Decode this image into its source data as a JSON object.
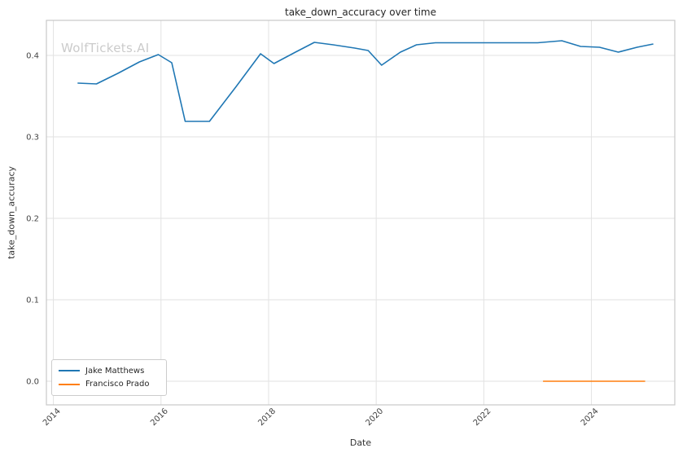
{
  "watermark": "WolfTickets.AI",
  "chart_data": {
    "type": "line",
    "title": "take_down_accuracy over time",
    "xlabel": "Date",
    "ylabel": "take_down_accuracy",
    "xlim": [
      2013.87,
      2025.55
    ],
    "ylim": [
      -0.029,
      0.443
    ],
    "grid": true,
    "legend_position": "lower left",
    "xticks": {
      "values": [
        2014,
        2016,
        2018,
        2020,
        2022,
        2024
      ],
      "labels": [
        "2014",
        "2016",
        "2018",
        "2020",
        "2022",
        "2024"
      ],
      "rotation": 45
    },
    "yticks": {
      "values": [
        0.0,
        0.1,
        0.2,
        0.3,
        0.4
      ],
      "labels": [
        "0.0",
        "0.1",
        "0.2",
        "0.3",
        "0.4"
      ]
    },
    "series": [
      {
        "name": "Jake Matthews",
        "color": "#1f77b4",
        "points": [
          [
            2014.45,
            0.366
          ],
          [
            2014.8,
            0.365
          ],
          [
            2015.2,
            0.378
          ],
          [
            2015.6,
            0.392
          ],
          [
            2015.95,
            0.401
          ],
          [
            2016.2,
            0.391
          ],
          [
            2016.45,
            0.319
          ],
          [
            2016.9,
            0.319
          ],
          [
            2017.4,
            0.362
          ],
          [
            2017.85,
            0.402
          ],
          [
            2018.1,
            0.39
          ],
          [
            2018.5,
            0.404
          ],
          [
            2018.85,
            0.416
          ],
          [
            2019.2,
            0.413
          ],
          [
            2019.6,
            0.409
          ],
          [
            2019.85,
            0.406
          ],
          [
            2020.1,
            0.388
          ],
          [
            2020.45,
            0.404
          ],
          [
            2020.75,
            0.413
          ],
          [
            2021.1,
            0.4155
          ],
          [
            2022.0,
            0.4155
          ],
          [
            2023.0,
            0.4155
          ],
          [
            2023.45,
            0.418
          ],
          [
            2023.8,
            0.411
          ],
          [
            2024.15,
            0.41
          ],
          [
            2024.5,
            0.404
          ],
          [
            2024.85,
            0.41
          ],
          [
            2025.15,
            0.414
          ]
        ]
      },
      {
        "name": "Francisco Prado",
        "color": "#ff7f0e",
        "points": [
          [
            2023.1,
            0.0
          ],
          [
            2025.0,
            0.0
          ]
        ]
      }
    ],
    "colors": {
      "grid": "#e2e2e2",
      "spine": "#c8c8c8",
      "text": "#262626",
      "tick_text": "#444444",
      "watermark": "#cbcbcb"
    }
  }
}
